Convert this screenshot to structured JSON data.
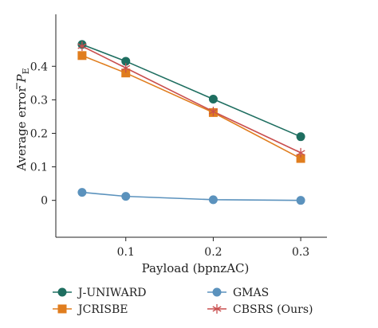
{
  "chart_data": {
    "type": "line",
    "xlabel": "Payload (bpnzAC)",
    "ylabel": {
      "prefix": "Average error ",
      "symbol": "P",
      "subscript": "E"
    },
    "x": [
      0.05,
      0.1,
      0.2,
      0.3
    ],
    "xticks": [
      0.1,
      0.2,
      0.3
    ],
    "xtick_labels": [
      "0.1",
      "0.2",
      "0.3"
    ],
    "yticks": [
      0,
      0.1,
      0.2,
      0.3,
      0.4
    ],
    "ytick_labels": [
      "0",
      "0.1",
      "0.2",
      "0.3",
      "0.4"
    ],
    "xlim": [
      0.02,
      0.33
    ],
    "ylim": [
      -0.11,
      0.555
    ],
    "series": [
      {
        "name": "J-UNIWARD",
        "values": [
          0.465,
          0.415,
          0.302,
          0.19
        ],
        "color": "#1e6e60",
        "marker": "circle"
      },
      {
        "name": "JCRISBE",
        "values": [
          0.432,
          0.38,
          0.262,
          0.125
        ],
        "color": "#e07d1e",
        "marker": "square"
      },
      {
        "name": "GMAS",
        "values": [
          0.024,
          0.012,
          0.002,
          0.0
        ],
        "color": "#5b92bd",
        "marker": "circle"
      },
      {
        "name": "CBSRS (Ours)",
        "values": [
          0.46,
          0.395,
          0.265,
          0.142
        ],
        "color": "#c94f4f",
        "marker": "star"
      }
    ],
    "legend": "bottom"
  }
}
